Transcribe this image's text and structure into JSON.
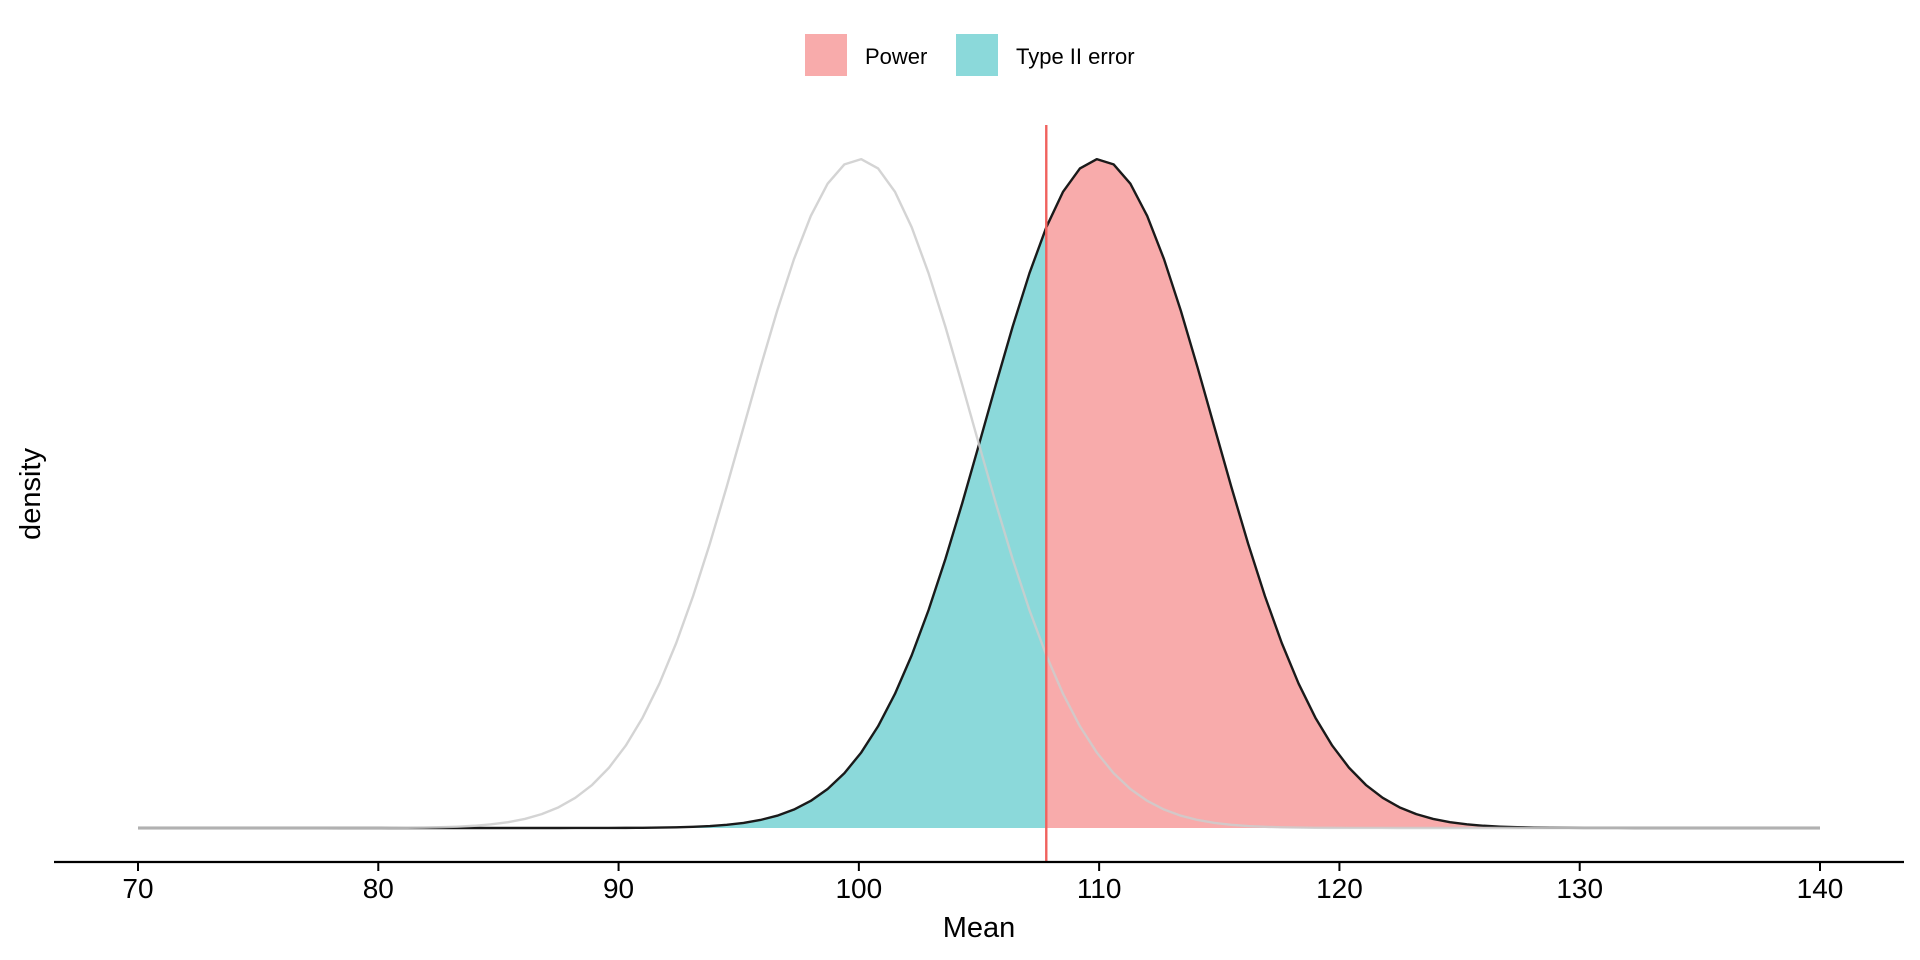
{
  "chart_data": {
    "type": "area",
    "title": "",
    "xlabel": "Mean",
    "ylabel": "density",
    "xlim": [
      70,
      140
    ],
    "x_ticks": [
      70,
      80,
      90,
      100,
      110,
      120,
      130,
      140
    ],
    "grid": false,
    "legend_position": "top",
    "null_distribution": {
      "type": "normal",
      "mean": 100,
      "sd": 4.74
    },
    "alternative_distribution": {
      "type": "normal",
      "mean": 110,
      "sd": 4.74
    },
    "critical_value": 107.8,
    "series": [
      {
        "name": "Power",
        "color": "#F8ABAB",
        "region": "x >= 107.8 under alternative"
      },
      {
        "name": "Type II error",
        "color": "#8BD9DA",
        "region": "x < 107.8 under alternative"
      }
    ],
    "colors": {
      "critical_line": "#F0625E",
      "alternative_curve": "#1A1A1A",
      "null_curve": "#CCCCCC",
      "axis": "#000000"
    }
  }
}
